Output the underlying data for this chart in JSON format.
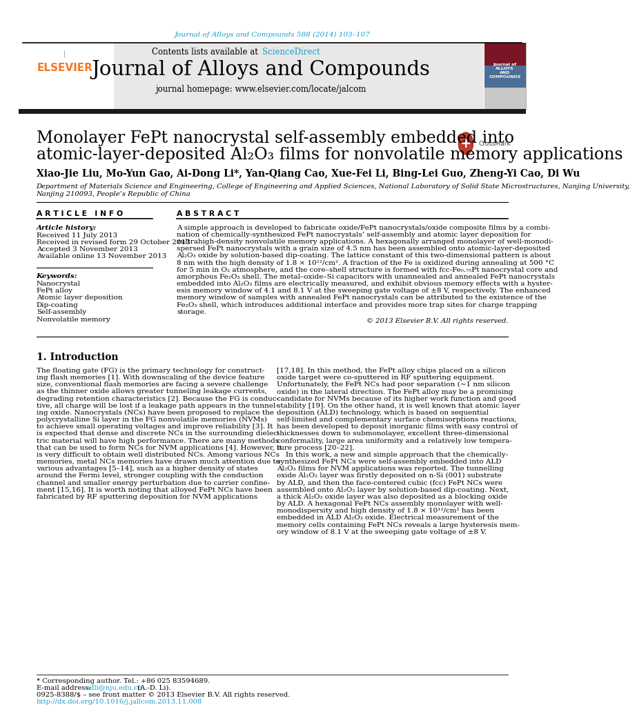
{
  "page_color": "#ffffff",
  "header_journal_text": "Journal of Alloys and Compounds 588 (2014) 103–107",
  "header_journal_color": "#1a9eca",
  "contents_text": "Contents lists available at ",
  "sciencedirect_text": "ScienceDirect",
  "sciencedirect_color": "#1a9eca",
  "journal_title": "Journal of Alloys and Compounds",
  "journal_homepage": "journal homepage: www.elsevier.com/locate/jalcom",
  "paper_title_line1": "Monolayer FePt nanocrystal self-assembly embedded into",
  "paper_title_line2": "atomic-layer-deposited Al₂O₃ films for nonvolatile memory applications",
  "authors": "Xiao-Jie Liu, Mo-Yun Gao, Ai-Dong Li*, Yan-Qiang Cao, Xue-Fei Li, Bing-Lei Guo, Zheng-Yi Cao, Di Wu",
  "affiliation_line1": "Department of Materials Science and Engineering, College of Engineering and Applied Sciences, National Laboratory of Solid State Microstructures, Nanjing University,",
  "affiliation_line2": "Nanjing 210093, People’s Republic of China",
  "article_info_header": "A R T I C L E   I N F O",
  "abstract_header": "A B S T R A C T",
  "article_history_label": "Article history:",
  "received": "Received 11 July 2013",
  "revised": "Received in revised form 29 October 2013",
  "accepted": "Accepted 3 November 2013",
  "available": "Available online 13 November 2013",
  "keywords_label": "Keywords:",
  "keywords": [
    "Nanocrystal",
    "FePt alloy",
    "Atomic layer deposition",
    "Dip-coating",
    "Self-assembly",
    "Nonvolatile memory"
  ],
  "copyright_text": "© 2013 Elsevier B.V. All rights reserved.",
  "intro_header": "1. Introduction",
  "footer_corresponding": "* Corresponding author. Tel.: +86 025 83594689.",
  "footer_email_label": "E-mail address: ",
  "footer_email": "adli@nju.edu.cn",
  "footer_email_suffix": " (A.-D. Li).",
  "footer_issn": "0925-8388/$ – see front matter © 2013 Elsevier B.V. All rights reserved.",
  "footer_doi": "http://dx.doi.org/10.1016/j.jallcom.2013.11.008",
  "header_bar_color": "#1a1a1a",
  "elsevier_color": "#f47920",
  "gray_banner_color": "#e8e8e8",
  "abstract_lines": [
    "A simple approach is developed to fabricate oxide/FePt nanocrystals/oxide composite films by a combi-",
    "nation of chemically-synthesized FePt nanocrystals’ self-assembly and atomic layer deposition for",
    "zultrahigh-density nonvolatile memory applications. A hexagonally arranged monolayer of well-monodi-",
    "spersed FePt nanocrystals with a grain size of 4.5 nm has been assembled onto atomic-layer-deposited",
    "Al₂O₃ oxide by solution-based dip-coating. The lattice constant of this two-dimensional pattern is about",
    "8 nm with the high density of 1.8 × 10¹²/cm². A fraction of the Fe is oxidized during annealing at 500 °C",
    "for 5 min in O₂ atmosphere, and the core–shell structure is formed with fcc-Fe₀.₇₅Pt nanocrystal core and",
    "amorphous Fe₂O₃ shell. The metal–oxide–Si capacitors with unannealed and annealed FePt nanocrystals",
    "embedded into Al₂O₃ films are electrically measured, and exhibit obvious memory effects with a hyster-",
    "esis memory window of 4.1 and 8.1 V at the sweeping gate voltage of ±8 V, respectively. The enhanced",
    "memory window of samples with annealed FePt nanocrystals can be attributed to the existence of the",
    "Fe₂O₃ shell, which introduces additional interface and provides more trap sites for charge trapping",
    "storage."
  ],
  "intro_left_lines": [
    "The floating gate (FG) is the primary technology for construct-",
    "ing flash memories [1]. With downscaling of the device feature",
    "size, conventional flash memories are facing a severe challenge",
    "as the thinner oxide allows greater tunneling leakage currents,",
    "degrading retention characteristics [2]. Because the FG is conduc-",
    "tive, all charge will be lost if a leakage path appears in the tunnel-",
    "ing oxide. Nanocrystals (NCs) have been proposed to replace the",
    "polycrystalline Si layer in the FG nonvolatile memories (NVMs)",
    "to achieve small operating voltages and improve reliability [3]. It",
    "is expected that dense and discrete NCs in the surrounding dielec-",
    "tric material will have high performance. There are many methods",
    "that can be used to form NCs for NVM applications [4]. However, it",
    "is very difficult to obtain well distributed NCs. Among various NCs",
    "memories, metal NCs memories have drawn much attention due to",
    "various advantages [5–14], such as a higher density of states",
    "around the Fermi level, stronger coupling with the conduction",
    "channel and smaller energy perturbation due to carrier confine-",
    "ment [15,16]. It is worth noting that alloyed FePt NCs have been",
    "fabricated by RF sputtering deposition for NVM applications"
  ],
  "intro_right_lines": [
    "[17,18]. In this method, the FePt alloy chips placed on a silicon",
    "oxide target were co-sputtered in RF sputtering equipment.",
    "Unfortunately, the FePt NCs had poor separation (~1 nm silicon",
    "oxide) in the lateral direction. The FePt alloy may be a promising",
    "candidate for NVMs because of its higher work function and good",
    "stability [19]. On the other hand, it is well known that atomic layer",
    "deposition (ALD) technology, which is based on sequential",
    "self-limited and complementary surface chemisorptions reactions,",
    "has been developed to deposit inorganic films with easy control of",
    "thicknesses down to submonolayer, excellent three-dimensional",
    "conformality, large area uniformity and a relatively low tempera-",
    "ture process [20–22].",
    "    In this work, a new and simple approach that the chemically-",
    "synthesized FePt NCs were self-assembly embedded into ALD",
    "Al₂O₃ films for NVM applications was reported. The tunnelling",
    "oxide Al₂O₃ layer was firstly deposited on n-Si (001) substrate",
    "by ALD, and then the face-centered cubic (fcc) FePt NCs were",
    "assembled onto Al₂O₃ layer by solution-based dip-coating. Next,",
    "a thick Al₂O₃ oxide layer was also deposited as a blocking oxide",
    "by ALD. A hexagonal FePt NCs assembly monolayer with well-",
    "monodispersity and high density of 1.8 × 10¹²/cm² has been",
    "embedded in ALD Al₂O₃ oxide. Electrical measurement of the",
    "memory cells containing FePt NCs reveals a large hysteresis mem-",
    "ory window of 8.1 V at the sweeping gate voltage of ±8 V."
  ]
}
